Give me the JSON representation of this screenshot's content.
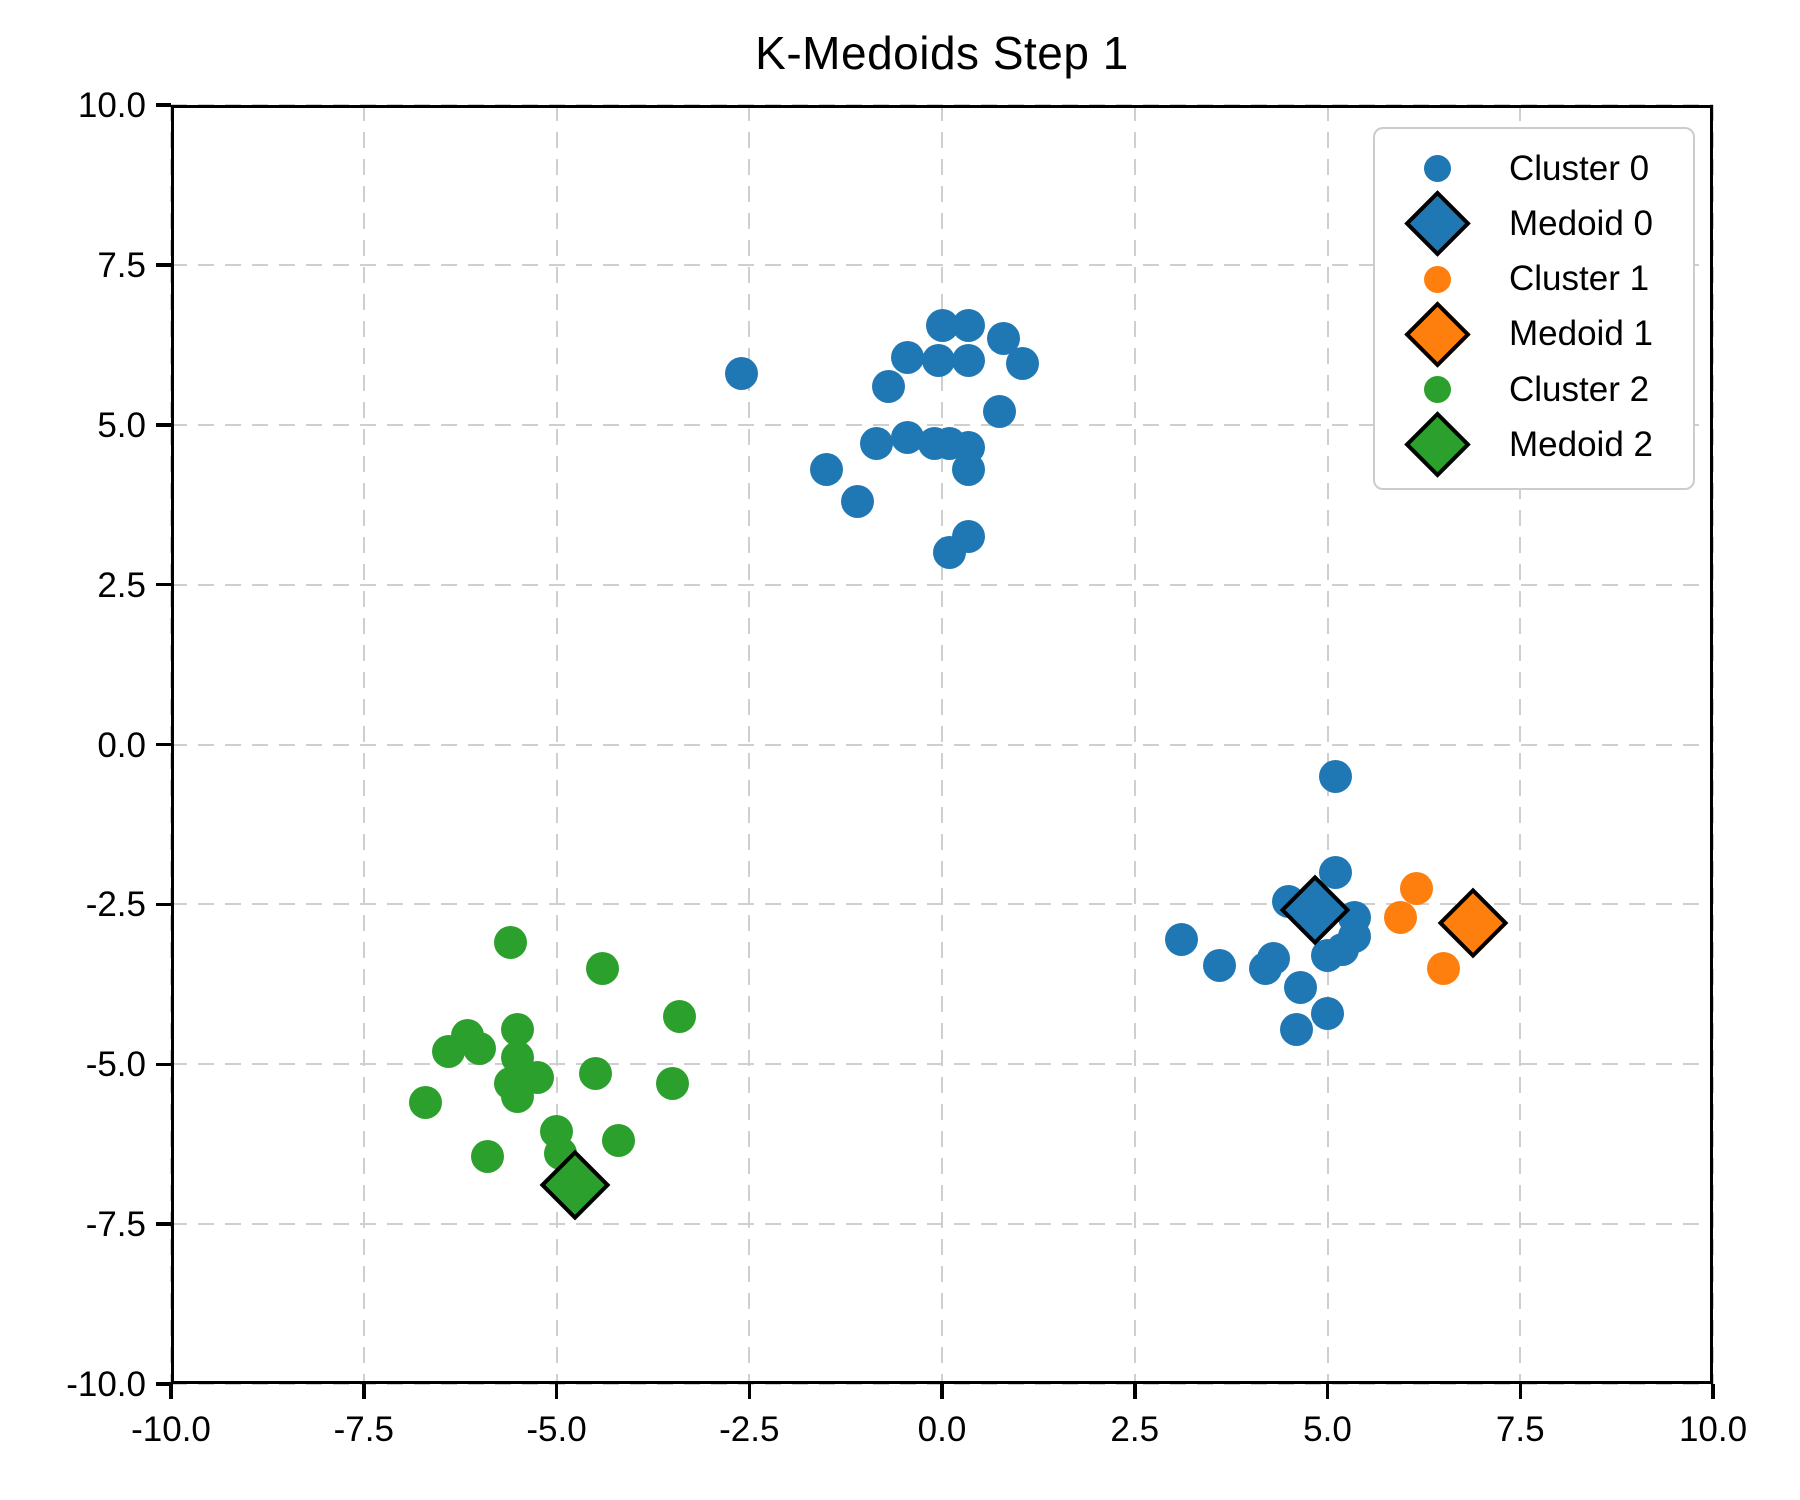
{
  "title": "K-Medoids Step 1",
  "axes": {
    "x_tick_labels": [
      "-10.0",
      "-7.5",
      "-5.0",
      "-2.5",
      "0.0",
      "2.5",
      "5.0",
      "7.5",
      "10.0"
    ],
    "y_tick_labels": [
      "10.0",
      "7.5",
      "5.0",
      "2.5",
      "0.0",
      "-2.5",
      "-5.0",
      "-7.5",
      "-10.0"
    ],
    "x_tick_values": [
      -10,
      -7.5,
      -5,
      -2.5,
      0,
      2.5,
      5,
      7.5,
      10
    ],
    "y_tick_values": [
      10,
      7.5,
      5,
      2.5,
      0,
      -2.5,
      -5,
      -7.5,
      -10
    ]
  },
  "colors": {
    "cluster0": "#1f77b4",
    "cluster1": "#ff7f0e",
    "cluster2": "#2ca02c",
    "medoid_edge": "#000000",
    "grid": "#cfcfcf",
    "text": "#000000"
  },
  "legend": {
    "items": [
      {
        "label": "Cluster 0",
        "marker": "dot",
        "color": "#1f77b4"
      },
      {
        "label": "Medoid 0",
        "marker": "diamond",
        "color": "#1f77b4"
      },
      {
        "label": "Cluster 1",
        "marker": "dot",
        "color": "#ff7f0e"
      },
      {
        "label": "Medoid 1",
        "marker": "diamond",
        "color": "#ff7f0e"
      },
      {
        "label": "Cluster 2",
        "marker": "dot",
        "color": "#2ca02c"
      },
      {
        "label": "Medoid 2",
        "marker": "diamond",
        "color": "#2ca02c"
      }
    ]
  },
  "chart_data": {
    "type": "scatter",
    "title": "K-Medoids Step 1",
    "xlabel": "",
    "ylabel": "",
    "xlim": [
      -10,
      10
    ],
    "ylim": [
      -10,
      10
    ],
    "grid": true,
    "legend_position": "upper right",
    "series": [
      {
        "name": "Cluster 0",
        "marker": "circle",
        "color": "#1f77b4",
        "points": [
          [
            -2.6,
            5.8
          ],
          [
            0.0,
            6.55
          ],
          [
            0.35,
            6.55
          ],
          [
            0.8,
            6.35
          ],
          [
            -0.45,
            6.05
          ],
          [
            -0.05,
            6.0
          ],
          [
            0.35,
            6.0
          ],
          [
            1.05,
            5.95
          ],
          [
            -0.7,
            5.6
          ],
          [
            0.75,
            5.2
          ],
          [
            -0.85,
            4.7
          ],
          [
            -0.45,
            4.8
          ],
          [
            -0.1,
            4.7
          ],
          [
            0.1,
            4.7
          ],
          [
            0.35,
            4.65
          ],
          [
            0.35,
            4.3
          ],
          [
            -1.5,
            4.3
          ],
          [
            -1.1,
            3.8
          ],
          [
            0.1,
            3.0
          ],
          [
            0.35,
            3.25
          ],
          [
            5.1,
            -0.5
          ],
          [
            5.1,
            -2.0
          ],
          [
            4.5,
            -2.45
          ],
          [
            5.35,
            -2.7
          ],
          [
            5.35,
            -3.0
          ],
          [
            5.2,
            -3.2
          ],
          [
            5.0,
            -3.3
          ],
          [
            4.3,
            -3.35
          ],
          [
            4.2,
            -3.5
          ],
          [
            3.1,
            -3.05
          ],
          [
            3.6,
            -3.45
          ],
          [
            4.65,
            -3.8
          ],
          [
            5.0,
            -4.2
          ],
          [
            4.6,
            -4.45
          ]
        ]
      },
      {
        "name": "Medoid 0",
        "marker": "diamond",
        "color": "#1f77b4",
        "points": [
          [
            4.85,
            -2.6
          ]
        ]
      },
      {
        "name": "Cluster 1",
        "marker": "circle",
        "color": "#ff7f0e",
        "points": [
          [
            6.15,
            -2.25
          ],
          [
            5.95,
            -2.7
          ],
          [
            6.5,
            -3.5
          ]
        ]
      },
      {
        "name": "Medoid 1",
        "marker": "diamond",
        "color": "#ff7f0e",
        "points": [
          [
            6.9,
            -2.8
          ]
        ]
      },
      {
        "name": "Cluster 2",
        "marker": "circle",
        "color": "#2ca02c",
        "points": [
          [
            -5.6,
            -3.1
          ],
          [
            -4.4,
            -3.5
          ],
          [
            -3.4,
            -4.25
          ],
          [
            -5.5,
            -4.45
          ],
          [
            -6.15,
            -4.55
          ],
          [
            -6.0,
            -4.75
          ],
          [
            -6.4,
            -4.8
          ],
          [
            -5.5,
            -4.9
          ],
          [
            -5.25,
            -5.2
          ],
          [
            -5.6,
            -5.3
          ],
          [
            -5.5,
            -5.5
          ],
          [
            -4.5,
            -5.15
          ],
          [
            -3.5,
            -5.3
          ],
          [
            -6.7,
            -5.6
          ],
          [
            -5.0,
            -6.05
          ],
          [
            -4.95,
            -6.4
          ],
          [
            -4.2,
            -6.2
          ],
          [
            -5.9,
            -6.45
          ]
        ]
      },
      {
        "name": "Medoid 2",
        "marker": "diamond",
        "color": "#2ca02c",
        "points": [
          [
            -4.75,
            -6.9
          ]
        ]
      }
    ]
  }
}
